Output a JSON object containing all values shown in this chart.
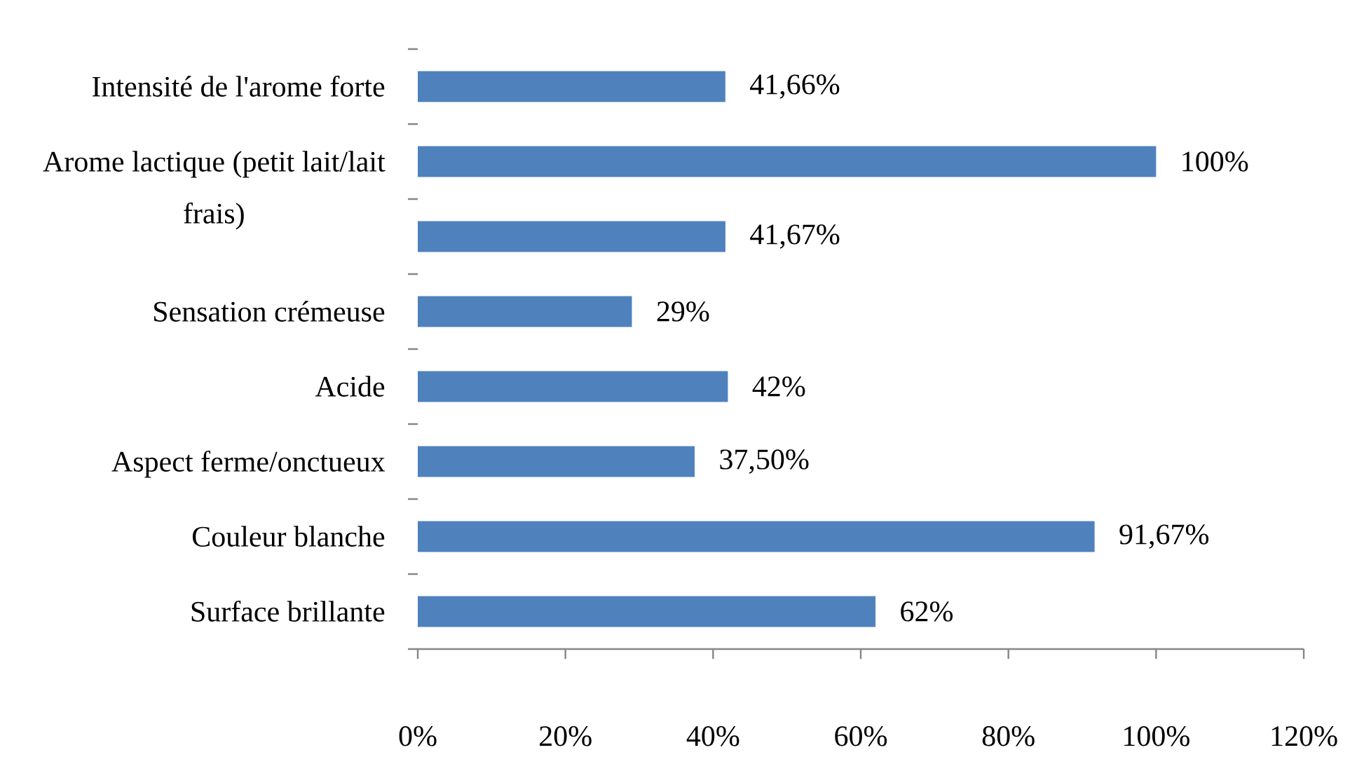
{
  "chart_data": {
    "type": "bar",
    "orientation": "horizontal",
    "categories": [
      "Intensité de l'arome forte",
      "Arome lactique (petit lait/lait frais)",
      null,
      "Sensation crémeuse",
      "Acide",
      "Aspect ferme/onctueux",
      "Couleur blanche",
      "Surface brillante"
    ],
    "values": [
      41.66,
      100,
      41.67,
      29,
      42,
      37.5,
      91.67,
      62
    ],
    "value_labels": [
      "41,66%",
      "100%",
      "41,67%",
      "29%",
      "42%",
      "37,50%",
      "91,67%",
      "62%"
    ],
    "color": "#4f81bd",
    "xlim": [
      0,
      120
    ],
    "xticks": [
      {
        "value": 0,
        "label": "0%"
      },
      {
        "value": 20,
        "label": "20%"
      },
      {
        "value": 40,
        "label": "40%"
      },
      {
        "value": 60,
        "label": "60%"
      },
      {
        "value": 80,
        "label": "80%"
      },
      {
        "value": 100,
        "label": "100%"
      },
      {
        "value": 120,
        "label": "120%"
      }
    ]
  }
}
